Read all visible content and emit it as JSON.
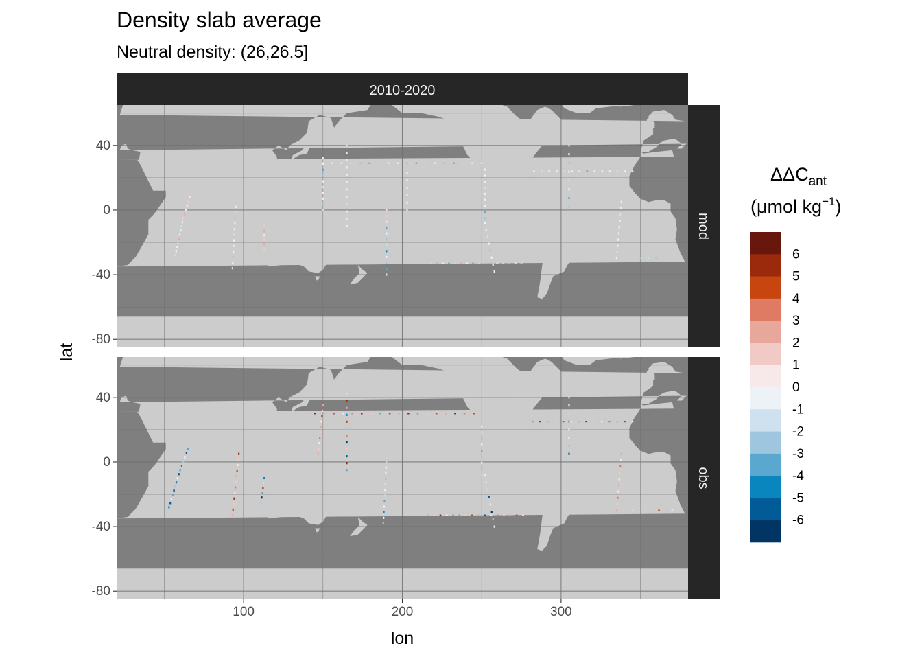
{
  "chart_data": {
    "type": "heatmap",
    "title": "Density slab average",
    "subtitle": "Neutral density: (26,26.5]",
    "xlabel": "lon",
    "ylabel": "lat",
    "xlim": [
      20,
      380
    ],
    "ylim": [
      -85,
      65
    ],
    "x_ticks": [
      100,
      200,
      300
    ],
    "y_ticks": [
      40,
      0,
      -40,
      -80
    ],
    "column_strip": "2010-2020",
    "panels": [
      {
        "name": "mod",
        "sections": [
          {
            "lon": [
              57,
              62
            ],
            "lat": [
              -28,
              -5
            ],
            "values": [
              -1,
              0,
              1,
              2,
              3,
              1,
              0,
              -1,
              0,
              2
            ]
          },
          {
            "lon": [
              62,
              66
            ],
            "lat": [
              -5,
              8
            ],
            "values": [
              2,
              3,
              1,
              0,
              2,
              1
            ]
          },
          {
            "lon": [
              93,
              95
            ],
            "lat": [
              -36,
              2
            ],
            "values": [
              -1,
              0,
              -2,
              0,
              1,
              0,
              -1,
              0,
              0,
              -2,
              -1,
              0
            ]
          },
          {
            "lon": [
              113,
              113
            ],
            "lat": [
              -24,
              -10
            ],
            "values": [
              2,
              3,
              2,
              1,
              3,
              2
            ]
          },
          {
            "lon": [
              150,
              150
            ],
            "lat": [
              0,
              32
            ],
            "values": [
              -1,
              -2,
              0,
              1,
              -1,
              0,
              -2,
              -3,
              0,
              1
            ]
          },
          {
            "lon": [
              165,
              165
            ],
            "lat": [
              -10,
              40
            ],
            "values": [
              0,
              1,
              0,
              -1,
              0,
              1,
              0,
              0,
              1,
              0,
              0,
              -1
            ]
          },
          {
            "lon": [
              150,
              250
            ],
            "lat": [
              29,
              29
            ],
            "values": [
              0,
              1,
              0,
              2,
              3,
              4,
              2,
              1,
              0,
              3,
              4,
              2,
              1,
              3,
              4,
              2,
              0,
              1
            ]
          },
          {
            "lon": [
              190,
              190
            ],
            "lat": [
              -40,
              0
            ],
            "values": [
              -1,
              -3,
              -2,
              0,
              -4,
              -1,
              -2,
              0,
              -3,
              1,
              2,
              1
            ]
          },
          {
            "lon": [
              203,
              203
            ],
            "lat": [
              0,
              23
            ],
            "values": [
              0,
              0,
              1,
              0,
              0,
              0
            ]
          },
          {
            "lon": [
              252,
              252
            ],
            "lat": [
              -5,
              25
            ],
            "values": [
              -2,
              -3,
              0,
              0,
              0,
              -1,
              0,
              0,
              0
            ]
          },
          {
            "lon": [
              252,
              258
            ],
            "lat": [
              -8,
              -38
            ],
            "values": [
              0,
              0,
              -1,
              0,
              -2,
              0,
              0,
              0
            ]
          },
          {
            "lon": [
              218,
              275
            ],
            "lat": [
              -33,
              -33
            ],
            "values": [
              2,
              3,
              1,
              -3,
              2,
              3,
              1,
              4,
              2,
              -2,
              3,
              1,
              2,
              3,
              1,
              2
            ]
          },
          {
            "lon": [
              283,
              345
            ],
            "lat": [
              24,
              24
            ],
            "values": [
              0,
              -1,
              0,
              0,
              -1,
              0,
              0,
              -3,
              0,
              0,
              0,
              -1,
              0,
              0
            ]
          },
          {
            "lon": [
              305,
              305
            ],
            "lat": [
              2,
              40
            ],
            "values": [
              -2,
              -3,
              0,
              -1,
              0,
              -2,
              0,
              -1
            ]
          },
          {
            "lon": [
              335,
              338
            ],
            "lat": [
              -30,
              5
            ],
            "values": [
              0,
              -1,
              0,
              0,
              0,
              0,
              0,
              -1,
              0,
              0
            ]
          },
          {
            "lon": [
              350,
              360
            ],
            "lat": [
              -30,
              -30
            ],
            "values": [
              -2,
              -1,
              -2
            ]
          }
        ]
      },
      {
        "name": "obs",
        "sections": [
          {
            "lon": [
              53,
              60
            ],
            "lat": [
              -28,
              -5
            ],
            "values": [
              -4,
              -5,
              0,
              -3,
              -6,
              -2,
              -4,
              0,
              -5,
              -3
            ]
          },
          {
            "lon": [
              60,
              65
            ],
            "lat": [
              -5,
              8
            ],
            "values": [
              -3,
              -4,
              -2,
              0,
              -5,
              -3
            ]
          },
          {
            "lon": [
              93,
              97
            ],
            "lat": [
              -33,
              5
            ],
            "values": [
              3,
              5,
              2,
              6,
              1,
              4,
              2,
              3,
              5,
              1,
              2,
              6
            ]
          },
          {
            "lon": [
              111,
              113
            ],
            "lat": [
              -25,
              -10
            ],
            "values": [
              -2,
              -6,
              -3,
              6,
              -1,
              -4
            ]
          },
          {
            "lon": [
              147,
              150
            ],
            "lat": [
              5,
              35
            ],
            "values": [
              3,
              2,
              1,
              4,
              2,
              3,
              1,
              5,
              2,
              3
            ]
          },
          {
            "lon": [
              165,
              165
            ],
            "lat": [
              -5,
              42
            ],
            "values": [
              -3,
              6,
              -5,
              2,
              -6,
              4,
              -2,
              5,
              -4,
              3,
              6,
              -1
            ]
          },
          {
            "lon": [
              145,
              245
            ],
            "lat": [
              30,
              30
            ],
            "values": [
              6,
              3,
              5,
              1,
              4,
              6,
              2,
              -3,
              5,
              3,
              6,
              4,
              2,
              5,
              3,
              6,
              4,
              5
            ]
          },
          {
            "lon": [
              188,
              190
            ],
            "lat": [
              -38,
              0
            ],
            "values": [
              -2,
              0,
              -4,
              1,
              -3,
              2,
              0,
              -1,
              3,
              1,
              0,
              2
            ]
          },
          {
            "lon": [
              250,
              250
            ],
            "lat": [
              -8,
              22
            ],
            "values": [
              2,
              3,
              1,
              -2,
              4,
              1,
              3,
              2,
              1
            ]
          },
          {
            "lon": [
              252,
              258
            ],
            "lat": [
              -8,
              -40
            ],
            "values": [
              0,
              -1,
              2,
              -5,
              1,
              -6,
              -2,
              0
            ]
          },
          {
            "lon": [
              216,
              276
            ],
            "lat": [
              -33,
              -33
            ],
            "values": [
              3,
              2,
              6,
              1,
              4,
              -3,
              2,
              5,
              3,
              -5,
              1,
              4,
              2,
              3,
              5,
              1
            ]
          },
          {
            "lon": [
              282,
              345
            ],
            "lat": [
              25,
              25
            ],
            "values": [
              4,
              6,
              3,
              2,
              5,
              1,
              3,
              6,
              2,
              0,
              4,
              3,
              5,
              1
            ]
          },
          {
            "lon": [
              305,
              305
            ],
            "lat": [
              5,
              40
            ],
            "values": [
              -5,
              -2,
              0,
              1,
              -3,
              2,
              0,
              -1
            ]
          },
          {
            "lon": [
              335,
              338
            ],
            "lat": [
              -30,
              5
            ],
            "values": [
              3,
              2,
              4,
              1,
              3,
              0,
              2,
              4,
              1,
              3
            ]
          },
          {
            "lon": [
              345,
              370
            ],
            "lat": [
              -30,
              -30
            ],
            "values": [
              -1,
              2,
              5,
              1
            ]
          }
        ]
      }
    ],
    "legend": {
      "title": "ΔΔC",
      "title_subscript": "ant",
      "unit_prefix": "(μmol kg",
      "unit_superscript": "−1",
      "unit_suffix": ")",
      "placement": "right",
      "labels": [
        "6",
        "5",
        "4",
        "3",
        "2",
        "1",
        "0",
        "-1",
        "-2",
        "-3",
        "-4",
        "-5",
        "-6"
      ],
      "colors": [
        "#67170b",
        "#9b2a0c",
        "#c84510",
        "#df7a63",
        "#e8a79b",
        "#f2cac5",
        "#f7e9ea",
        "#edf2f7",
        "#cfe0ee",
        "#9fc6df",
        "#5aa8cf",
        "#0a86be",
        "#005b96",
        "#003564"
      ]
    },
    "colors": {
      "ocean": "#7f7f7f",
      "land": "#cccccc",
      "grid": "#6e6e6e",
      "strip": "#262626"
    }
  }
}
